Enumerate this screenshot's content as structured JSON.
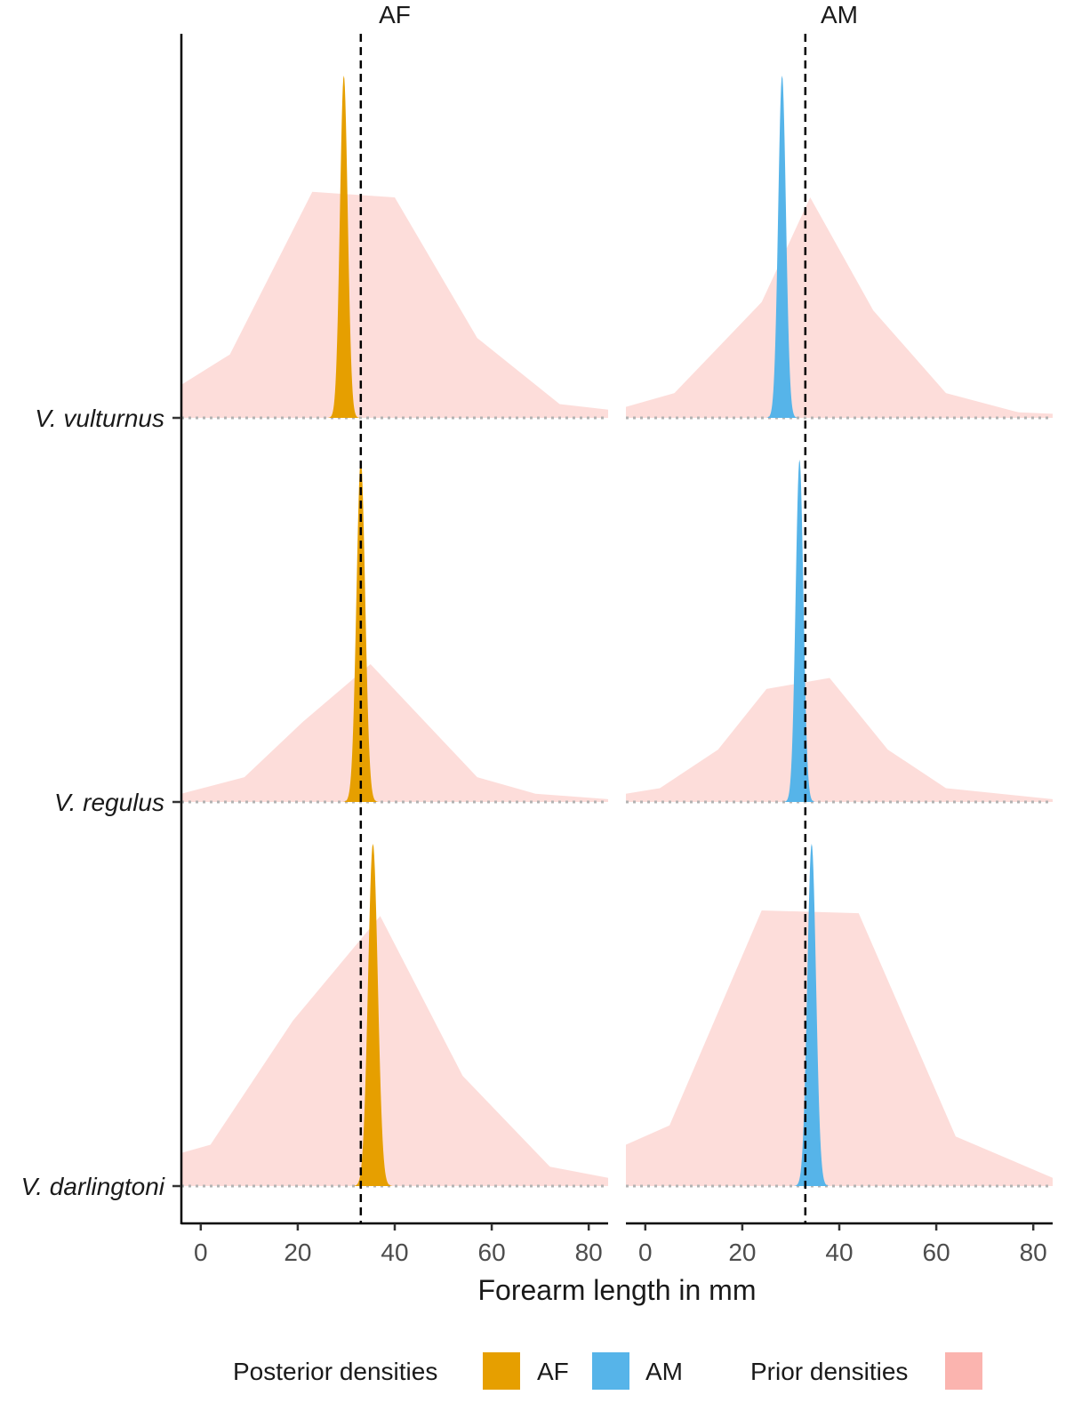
{
  "chart_data": {
    "type": "area",
    "xlabel": "Forearm length in mm",
    "xlim": [
      -4,
      84
    ],
    "x_ticks": [
      "0",
      "20",
      "40",
      "60",
      "80"
    ],
    "x_tick_values": [
      0,
      20,
      40,
      60,
      80
    ],
    "reference_line_x": 33,
    "facets": [
      "AF",
      "AM"
    ],
    "species": [
      "V. vulturnus",
      "V. regulus",
      "V. darlingtoni"
    ],
    "colors": {
      "AF": "#E69F00",
      "AM": "#56B4E9",
      "prior": "#F8766D"
    },
    "legend": {
      "posterior_title": "Posterior densities",
      "posterior_items": [
        "AF",
        "AM"
      ],
      "prior_title": "Prior densities"
    },
    "priors": {
      "AF": {
        "V. vulturnus": [
          [
            -4,
            0.12
          ],
          [
            6,
            0.23
          ],
          [
            23,
            0.82
          ],
          [
            40,
            0.8
          ],
          [
            57,
            0.29
          ],
          [
            74,
            0.05
          ],
          [
            84,
            0.03
          ]
        ],
        "V. regulus": [
          [
            -4,
            0.03
          ],
          [
            9,
            0.09
          ],
          [
            21,
            0.29
          ],
          [
            35,
            0.5
          ],
          [
            57,
            0.09
          ],
          [
            69,
            0.03
          ],
          [
            84,
            0.01
          ]
        ],
        "V. darlingtoni": [
          [
            -4,
            0.12
          ],
          [
            2,
            0.15
          ],
          [
            19,
            0.6
          ],
          [
            37,
            0.98
          ],
          [
            54,
            0.4
          ],
          [
            72,
            0.07
          ],
          [
            84,
            0.03
          ]
        ]
      },
      "AM": {
        "V. vulturnus": [
          [
            -4,
            0.04
          ],
          [
            6,
            0.09
          ],
          [
            24,
            0.42
          ],
          [
            34,
            0.8
          ],
          [
            47,
            0.39
          ],
          [
            62,
            0.09
          ],
          [
            77,
            0.02
          ],
          [
            84,
            0.015
          ]
        ],
        "V. regulus": [
          [
            -4,
            0.03
          ],
          [
            3,
            0.05
          ],
          [
            15,
            0.19
          ],
          [
            25,
            0.41
          ],
          [
            38,
            0.45
          ],
          [
            50,
            0.19
          ],
          [
            62,
            0.05
          ],
          [
            84,
            0.01
          ]
        ],
        "V. darlingtoni": [
          [
            -4,
            0.15
          ],
          [
            5,
            0.22
          ],
          [
            24,
            1.0
          ],
          [
            44,
            0.99
          ],
          [
            64,
            0.18
          ],
          [
            84,
            0.03
          ]
        ]
      }
    },
    "posteriors": {
      "AF": {
        "V. vulturnus": {
          "mean": 29.5,
          "sd": 0.8
        },
        "V. regulus": {
          "mean": 33.0,
          "sd": 0.9
        },
        "V. darlingtoni": {
          "mean": 35.5,
          "sd": 1.0
        }
      },
      "AM": {
        "V. vulturnus": {
          "mean": 28.2,
          "sd": 0.8
        },
        "V. regulus": {
          "mean": 31.8,
          "sd": 0.8
        },
        "V. darlingtoni": {
          "mean": 34.3,
          "sd": 0.9
        }
      }
    }
  }
}
